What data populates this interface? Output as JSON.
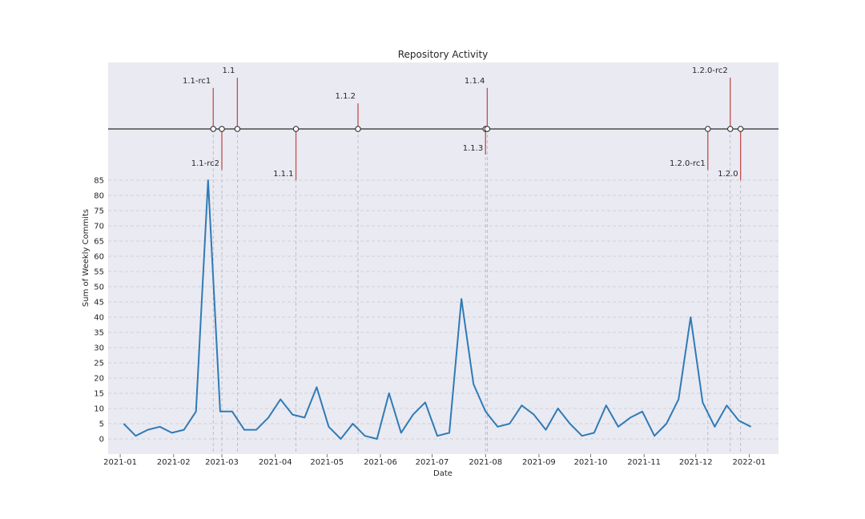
{
  "chart_data": {
    "type": "line",
    "title": "Repository Activity",
    "xlabel": "Date",
    "ylabel": "Sum of Weekly Commits",
    "x_range": [
      "2020-12-25",
      "2022-01-18"
    ],
    "ylim": [
      -5,
      85
    ],
    "x_ticks": [
      "2021-01-01",
      "2021-02-01",
      "2021-03-01",
      "2021-04-01",
      "2021-05-01",
      "2021-06-01",
      "2021-07-01",
      "2021-08-01",
      "2021-09-01",
      "2021-10-01",
      "2021-11-01",
      "2021-12-01",
      "2022-01-01"
    ],
    "x_tick_labels": [
      "2021-01",
      "2021-02",
      "2021-03",
      "2021-04",
      "2021-05",
      "2021-06",
      "2021-07",
      "2021-08",
      "2021-09",
      "2021-10",
      "2021-11",
      "2021-12",
      "2022-01"
    ],
    "y_ticks": [
      0,
      5,
      10,
      15,
      20,
      25,
      30,
      35,
      40,
      45,
      50,
      55,
      60,
      65,
      70,
      75,
      80,
      85
    ],
    "grid": true,
    "colors": {
      "line": "#2f7bb6",
      "release_stem": "#c0504d",
      "background": "#eaeaf2",
      "grid": "#c8c8d2",
      "axis_line": "#4d4d4d"
    },
    "series": [
      {
        "x": [
          "2021-01-03",
          "2021-01-10",
          "2021-01-17",
          "2021-01-24",
          "2021-01-31",
          "2021-02-07",
          "2021-02-14",
          "2021-02-21",
          "2021-02-28",
          "2021-03-07",
          "2021-03-14",
          "2021-03-21",
          "2021-03-28",
          "2021-04-04",
          "2021-04-11",
          "2021-04-18",
          "2021-04-25",
          "2021-05-02",
          "2021-05-09",
          "2021-05-16",
          "2021-05-23",
          "2021-05-30",
          "2021-06-06",
          "2021-06-13",
          "2021-06-20",
          "2021-06-27",
          "2021-07-04",
          "2021-07-11",
          "2021-07-18",
          "2021-07-25",
          "2021-08-01",
          "2021-08-08",
          "2021-08-15",
          "2021-08-22",
          "2021-08-29",
          "2021-09-05",
          "2021-09-12",
          "2021-09-19",
          "2021-09-26",
          "2021-10-03",
          "2021-10-10",
          "2021-10-17",
          "2021-10-24",
          "2021-10-31",
          "2021-11-07",
          "2021-11-14",
          "2021-11-21",
          "2021-11-28",
          "2021-12-05",
          "2021-12-12",
          "2021-12-19",
          "2021-12-26",
          "2022-01-02"
        ],
        "values": [
          5,
          1,
          3,
          4,
          2,
          3,
          9,
          85,
          9,
          9,
          3,
          3,
          7,
          13,
          8,
          7,
          17,
          4,
          0,
          5,
          1,
          0,
          15,
          2,
          8,
          12,
          1,
          2,
          46,
          18,
          9,
          4,
          5,
          11,
          8,
          3,
          10,
          5,
          1,
          2,
          11,
          4,
          7,
          9,
          1,
          5,
          13,
          40,
          12,
          4,
          11,
          6,
          4
        ]
      }
    ],
    "releases": [
      {
        "name": "1.1-rc1",
        "date": "2021-02-24",
        "stem": 0.8
      },
      {
        "name": "1.1-rc2",
        "date": "2021-03-01",
        "stem": -0.8
      },
      {
        "name": "1.1",
        "date": "2021-03-10",
        "stem": 1.0
      },
      {
        "name": "1.1.1",
        "date": "2021-04-13",
        "stem": -1.0
      },
      {
        "name": "1.1.2",
        "date": "2021-05-19",
        "stem": 0.5
      },
      {
        "name": "1.1.3",
        "date": "2021-08-01",
        "stem": -0.5
      },
      {
        "name": "1.1.4",
        "date": "2021-08-02",
        "stem": 0.8
      },
      {
        "name": "1.2.0-rc1",
        "date": "2021-12-08",
        "stem": -0.8
      },
      {
        "name": "1.2.0-rc2",
        "date": "2021-12-21",
        "stem": 1.0
      },
      {
        "name": "1.2.0",
        "date": "2021-12-27",
        "stem": -1.0
      }
    ]
  }
}
